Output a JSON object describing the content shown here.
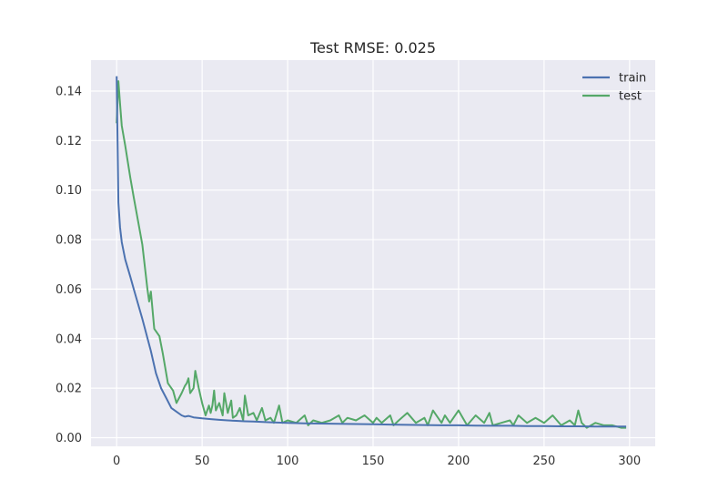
{
  "chart_data": {
    "type": "line",
    "title": "Test RMSE: 0.025",
    "xlabel": "",
    "ylabel": "",
    "xlim": [
      -15,
      315
    ],
    "ylim": [
      -0.0035,
      0.1525
    ],
    "xticks": [
      0,
      50,
      100,
      150,
      200,
      250,
      300
    ],
    "xtick_labels": [
      "0",
      "50",
      "100",
      "150",
      "200",
      "250",
      "300"
    ],
    "yticks": [
      0.0,
      0.02,
      0.04,
      0.06,
      0.08,
      0.1,
      0.12,
      0.14
    ],
    "ytick_labels": [
      "0.00",
      "0.02",
      "0.04",
      "0.06",
      "0.08",
      "0.10",
      "0.12",
      "0.14"
    ],
    "grid": true,
    "legend_position": "top-right",
    "background": "#eaeaf2",
    "series": [
      {
        "name": "train",
        "color": "#4c72b0",
        "x": [
          0,
          1,
          2,
          3,
          5,
          8,
          10,
          15,
          20,
          23,
          26,
          29,
          32,
          35,
          38,
          40,
          42,
          45,
          50,
          55,
          60,
          65,
          70,
          75,
          80,
          90,
          100,
          110,
          120,
          130,
          140,
          150,
          160,
          170,
          180,
          190,
          200,
          210,
          220,
          230,
          240,
          250,
          260,
          270,
          280,
          290,
          298
        ],
        "y": [
          0.146,
          0.095,
          0.085,
          0.079,
          0.072,
          0.065,
          0.06,
          0.048,
          0.035,
          0.026,
          0.02,
          0.016,
          0.012,
          0.0105,
          0.009,
          0.0085,
          0.0088,
          0.0082,
          0.0078,
          0.0075,
          0.0072,
          0.007,
          0.0068,
          0.0066,
          0.0065,
          0.0062,
          0.006,
          0.0058,
          0.0057,
          0.0056,
          0.0055,
          0.0054,
          0.0053,
          0.0052,
          0.0051,
          0.005,
          0.005,
          0.0049,
          0.0048,
          0.0048,
          0.0047,
          0.0047,
          0.0046,
          0.0046,
          0.0045,
          0.0045,
          0.0045
        ]
      },
      {
        "name": "test",
        "color": "#55a868",
        "x": [
          0,
          1,
          2,
          3,
          5,
          8,
          10,
          15,
          18,
          19,
          20,
          22,
          25,
          27,
          30,
          33,
          35,
          38,
          40,
          41,
          42,
          43,
          45,
          46,
          48,
          50,
          52,
          54,
          55,
          56,
          57,
          58,
          60,
          62,
          63,
          65,
          67,
          68,
          70,
          72,
          74,
          75,
          77,
          80,
          82,
          85,
          87,
          90,
          92,
          95,
          97,
          100,
          105,
          110,
          112,
          115,
          120,
          125,
          130,
          132,
          135,
          140,
          145,
          150,
          152,
          155,
          160,
          162,
          165,
          170,
          175,
          180,
          182,
          185,
          190,
          192,
          195,
          200,
          205,
          210,
          215,
          218,
          220,
          225,
          230,
          232,
          235,
          240,
          245,
          250,
          255,
          260,
          265,
          268,
          270,
          272,
          275,
          280,
          285,
          290,
          295,
          298
        ],
        "y": [
          0.127,
          0.144,
          0.135,
          0.126,
          0.118,
          0.105,
          0.097,
          0.078,
          0.06,
          0.055,
          0.059,
          0.044,
          0.041,
          0.034,
          0.022,
          0.019,
          0.014,
          0.018,
          0.021,
          0.022,
          0.024,
          0.018,
          0.02,
          0.027,
          0.02,
          0.014,
          0.009,
          0.013,
          0.01,
          0.013,
          0.019,
          0.011,
          0.014,
          0.009,
          0.018,
          0.01,
          0.015,
          0.008,
          0.009,
          0.012,
          0.007,
          0.017,
          0.009,
          0.01,
          0.007,
          0.012,
          0.007,
          0.008,
          0.006,
          0.013,
          0.006,
          0.007,
          0.006,
          0.009,
          0.005,
          0.007,
          0.006,
          0.007,
          0.009,
          0.006,
          0.008,
          0.007,
          0.009,
          0.006,
          0.008,
          0.006,
          0.009,
          0.005,
          0.007,
          0.01,
          0.006,
          0.008,
          0.005,
          0.011,
          0.006,
          0.009,
          0.006,
          0.011,
          0.005,
          0.009,
          0.006,
          0.01,
          0.005,
          0.006,
          0.007,
          0.005,
          0.009,
          0.006,
          0.008,
          0.006,
          0.009,
          0.005,
          0.007,
          0.005,
          0.011,
          0.006,
          0.004,
          0.006,
          0.005,
          0.005,
          0.004,
          0.004
        ]
      }
    ]
  }
}
